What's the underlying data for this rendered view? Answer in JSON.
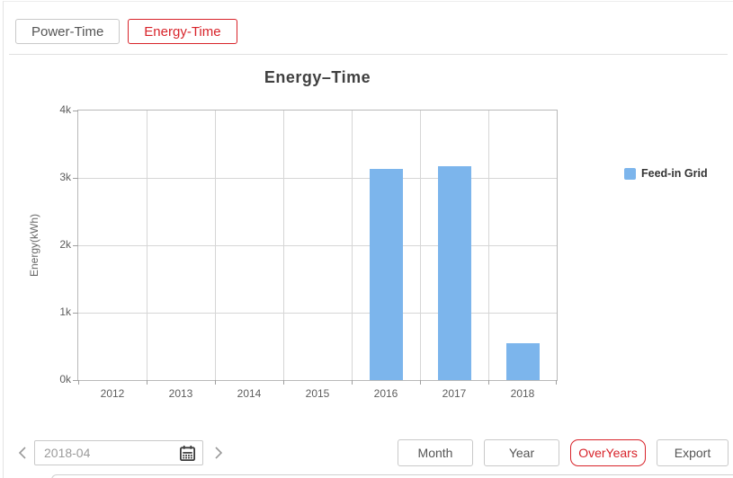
{
  "tabs": [
    {
      "label": "Power-Time",
      "active": false
    },
    {
      "label": "Energy-Time",
      "active": true
    }
  ],
  "chart_data": {
    "type": "bar",
    "title": "Energy–Time",
    "ylabel": "Energy(kWh)",
    "categories": [
      "2012",
      "2013",
      "2014",
      "2015",
      "2016",
      "2017",
      "2018"
    ],
    "series": [
      {
        "name": "Feed-in Grid",
        "color": "#7cb5ec",
        "values": [
          0,
          0,
          0,
          0,
          3140,
          3180,
          550
        ]
      }
    ],
    "ylim": [
      0,
      4000
    ],
    "yticks": [
      {
        "value": 0,
        "label": "0k"
      },
      {
        "value": 1000,
        "label": "1k"
      },
      {
        "value": 2000,
        "label": "2k"
      },
      {
        "value": 3000,
        "label": "3k"
      },
      {
        "value": 4000,
        "label": "4k"
      }
    ],
    "grid": true,
    "legend_position": "right"
  },
  "colors": {
    "accent_red": "#d8232a",
    "bar_blue": "#7cb5ec",
    "grid_gray": "#d6d6d6"
  },
  "footer": {
    "date_value": "2018-04",
    "icons": {
      "prev": "chevron-left-icon",
      "next": "chevron-right-icon",
      "calendar": "calendar-icon"
    },
    "buttons": [
      {
        "label": "Month",
        "active": false
      },
      {
        "label": "Year",
        "active": false
      },
      {
        "label": "OverYears",
        "active": true
      },
      {
        "label": "Export",
        "active": false
      }
    ]
  }
}
